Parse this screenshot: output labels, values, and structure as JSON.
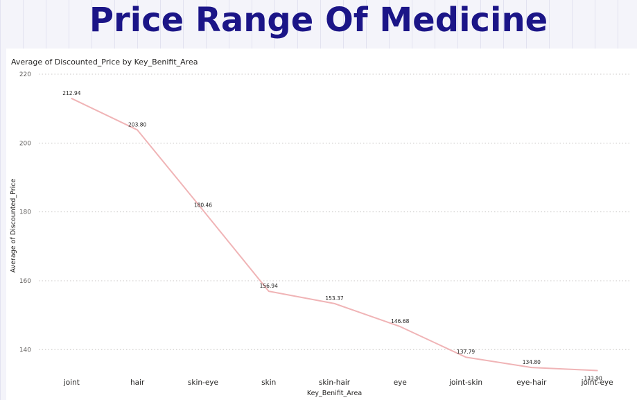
{
  "page": {
    "title": "Price Range Of Medicine"
  },
  "chart_data": {
    "type": "line",
    "title": "Average of Discounted_Price by Key_Benifit_Area",
    "xlabel": "Key_Benifit_Area",
    "ylabel": "Average of Discounted_Price",
    "categories": [
      "joint",
      "hair",
      "skin-eye",
      "skin",
      "skin-hair",
      "eye",
      "joint-skin",
      "eye-hair",
      "joint-eye"
    ],
    "series": [
      {
        "values": [
          212.94,
          203.8,
          180.46,
          156.94,
          153.37,
          146.68,
          137.79,
          134.8,
          133.9
        ],
        "data_labels": [
          "212.94",
          "203.80",
          "180.46",
          "156.94",
          "153.37",
          "146.68",
          "137.79",
          "134.80",
          "133.90"
        ],
        "color": "#f0b4b6"
      }
    ],
    "ylim": [
      132,
      220
    ],
    "yticks": [
      140,
      160,
      180,
      200,
      220
    ],
    "grid": true,
    "grid_color": "#c8c6c4"
  }
}
